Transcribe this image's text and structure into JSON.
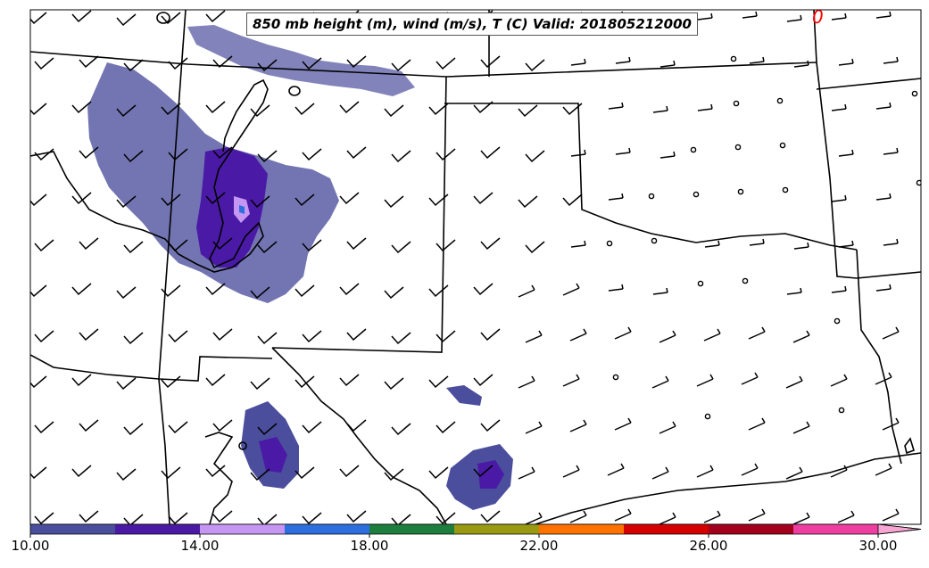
{
  "map": {
    "title": "850 mb height (m), wind (m/s), T (C) Valid: 201805212000",
    "region": "Southwestern United States (Utah, Colorado, New Mexico, Texas, Oklahoma)",
    "contour_label": "0"
  },
  "colorbar": {
    "ticks": [
      "10.00",
      "14.00",
      "18.00",
      "22.00",
      "26.00",
      "30.00"
    ],
    "bins": [
      {
        "from": 10,
        "to": 12,
        "color": "#4b4e9c"
      },
      {
        "from": 12,
        "to": 14,
        "color": "#4a1aa6"
      },
      {
        "from": 14,
        "to": 16,
        "color": "#c596f2"
      },
      {
        "from": 16,
        "to": 18,
        "color": "#2e6fe0"
      },
      {
        "from": 18,
        "to": 20,
        "color": "#1e7e3e"
      },
      {
        "from": 20,
        "to": 22,
        "color": "#9a9a12"
      },
      {
        "from": 22,
        "to": 24,
        "color": "#ff7200"
      },
      {
        "from": 24,
        "to": 26,
        "color": "#d50000"
      },
      {
        "from": 26,
        "to": 28,
        "color": "#a3001e"
      },
      {
        "from": 28,
        "to": 30,
        "color": "#ee3fa0"
      }
    ],
    "extend_color": "#f7a6d4",
    "range": [
      10,
      30
    ]
  },
  "colors": {
    "boundaries": "#000000",
    "contour_label": "#ff0000"
  }
}
